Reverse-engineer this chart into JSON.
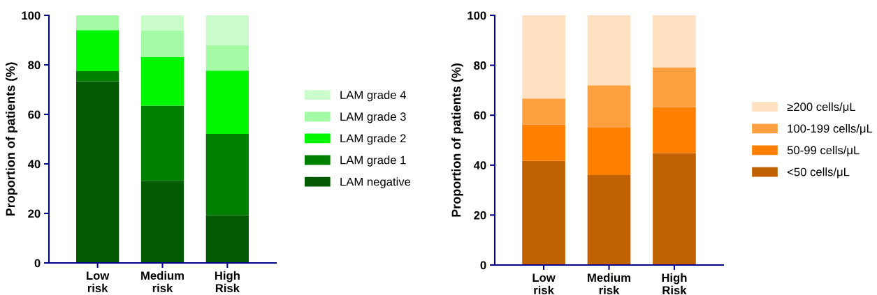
{
  "chart_data": [
    {
      "type": "bar",
      "stacked": true,
      "ylabel": "Proportion of patients (%)",
      "categories": [
        "Low\nrisk",
        "Medium\nrisk",
        "High\nRisk"
      ],
      "ylim": [
        0,
        100
      ],
      "yticks": [
        0,
        20,
        40,
        60,
        80,
        100
      ],
      "grid": false,
      "legend": "right",
      "series": [
        {
          "name": "LAM negative",
          "color": "#025a02",
          "values": [
            73.4,
            33.2,
            19.2
          ]
        },
        {
          "name": "LAM grade 1",
          "color": "#008000",
          "values": [
            4.1,
            30.3,
            32.9
          ]
        },
        {
          "name": "LAM grade 2",
          "color": "#00f700",
          "values": [
            16.5,
            19.7,
            25.6
          ]
        },
        {
          "name": "LAM grade 3",
          "color": "#a5fba5",
          "values": [
            6.0,
            10.6,
            10.3
          ]
        },
        {
          "name": "LAM grade 4",
          "color": "#cbfccb",
          "values": [
            0,
            6.2,
            12.0
          ]
        }
      ]
    },
    {
      "type": "bar",
      "stacked": true,
      "ylabel": "Proportion of patients (%)",
      "categories": [
        "Low\nrisk",
        "Medium\nrisk",
        "High\nRisk"
      ],
      "ylim": [
        0,
        100
      ],
      "yticks": [
        0,
        20,
        40,
        60,
        80,
        100
      ],
      "grid": false,
      "legend": "right",
      "series": [
        {
          "name": "<50 cells/μL",
          "color": "#c06203",
          "values": [
            41.7,
            36.0,
            44.8
          ]
        },
        {
          "name": "50-99 cells/μL",
          "color": "#ff8000",
          "values": [
            14.6,
            19.0,
            18.5
          ]
        },
        {
          "name": "100-199 cells/μL",
          "color": "#ffa040",
          "values": [
            10.4,
            17.0,
            15.9
          ]
        },
        {
          "name": "≥200 cells/μL",
          "color": "#ffe0c0",
          "values": [
            33.3,
            28.0,
            20.8
          ]
        }
      ]
    }
  ]
}
